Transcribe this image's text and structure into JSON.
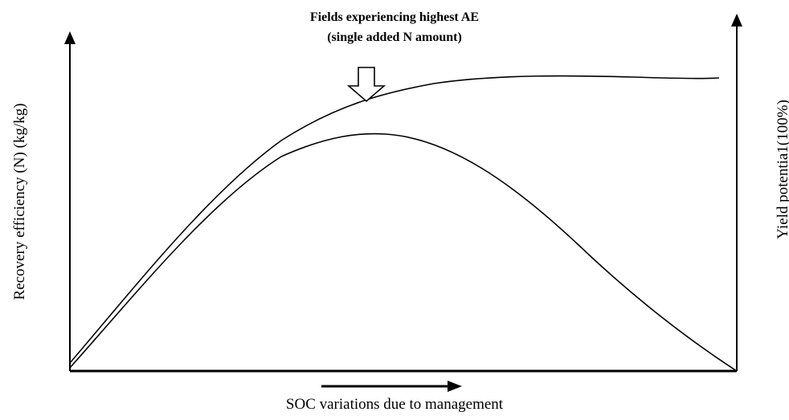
{
  "annotation": {
    "line1": "Fields experiencing highest AE",
    "line2": "(single added N amount)"
  },
  "axes": {
    "x_label": "SOC variations due to management",
    "y_left_label": "Recovery efficiency (N) (kg/kg)",
    "y_right_label": "Yield potentia1(100%)"
  },
  "colors": {
    "ink": "#000000",
    "background": "#ffffff"
  },
  "icons": [
    "down-arrow-icon",
    "right-arrow-icon"
  ]
}
